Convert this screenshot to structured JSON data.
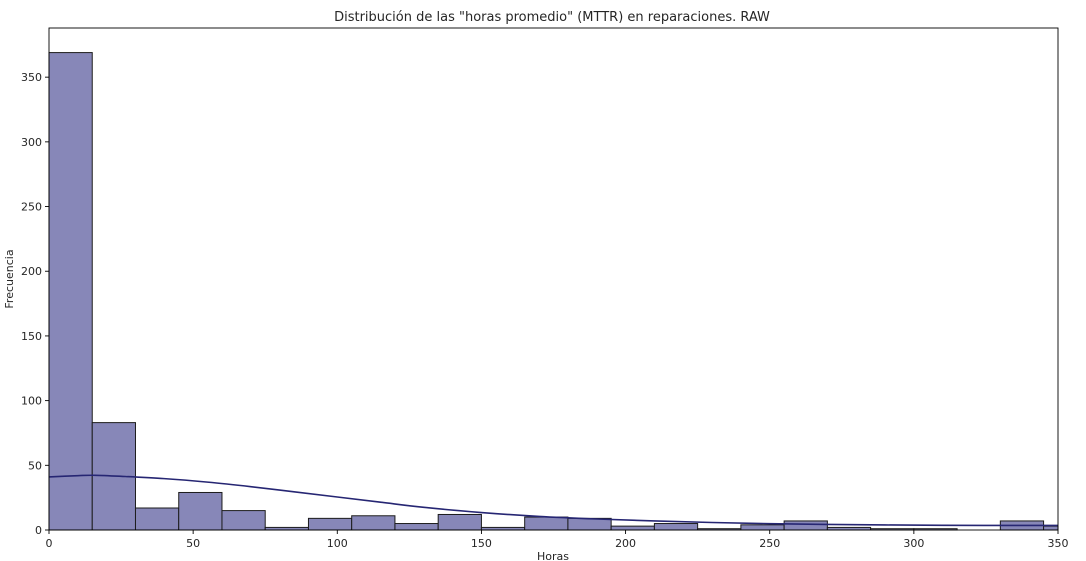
{
  "chart_data": {
    "type": "bar",
    "title": "Distribución de las \"horas promedio\" (MTTR) en reparaciones. RAW",
    "xlabel": "Horas",
    "ylabel": "Frecuencia",
    "xlim": [
      0,
      350
    ],
    "ylim": [
      0,
      388
    ],
    "xticks": [
      0,
      50,
      100,
      150,
      200,
      250,
      300,
      350
    ],
    "yticks": [
      0,
      50,
      100,
      150,
      200,
      250,
      300,
      350
    ],
    "bin_width": 15,
    "bins": [
      {
        "x0": 0,
        "x1": 15,
        "count": 369
      },
      {
        "x0": 15,
        "x1": 30,
        "count": 83
      },
      {
        "x0": 30,
        "x1": 45,
        "count": 17
      },
      {
        "x0": 45,
        "x1": 60,
        "count": 29
      },
      {
        "x0": 60,
        "x1": 75,
        "count": 15
      },
      {
        "x0": 75,
        "x1": 90,
        "count": 2
      },
      {
        "x0": 90,
        "x1": 105,
        "count": 9
      },
      {
        "x0": 105,
        "x1": 120,
        "count": 11
      },
      {
        "x0": 120,
        "x1": 135,
        "count": 5
      },
      {
        "x0": 135,
        "x1": 150,
        "count": 12
      },
      {
        "x0": 150,
        "x1": 165,
        "count": 2
      },
      {
        "x0": 165,
        "x1": 180,
        "count": 10
      },
      {
        "x0": 180,
        "x1": 195,
        "count": 9
      },
      {
        "x0": 195,
        "x1": 210,
        "count": 3
      },
      {
        "x0": 210,
        "x1": 225,
        "count": 5
      },
      {
        "x0": 225,
        "x1": 240,
        "count": 1
      },
      {
        "x0": 240,
        "x1": 255,
        "count": 4
      },
      {
        "x0": 255,
        "x1": 270,
        "count": 7
      },
      {
        "x0": 270,
        "x1": 285,
        "count": 2
      },
      {
        "x0": 285,
        "x1": 300,
        "count": 1
      },
      {
        "x0": 300,
        "x1": 315,
        "count": 1
      },
      {
        "x0": 315,
        "x1": 330,
        "count": 0
      },
      {
        "x0": 330,
        "x1": 345,
        "count": 7
      },
      {
        "x0": 345,
        "x1": 350,
        "count": 3
      }
    ],
    "kde_curve": {
      "x": [
        0,
        10,
        16,
        25,
        40,
        55,
        70,
        85,
        100,
        115,
        130,
        150,
        170,
        190,
        210,
        230,
        250,
        270,
        290,
        310,
        330,
        350
      ],
      "y": [
        41,
        42,
        42.3,
        41.5,
        39.7,
        37,
        33.5,
        29.5,
        25.5,
        21.5,
        17.5,
        13.5,
        10.5,
        8.5,
        7,
        5.8,
        4.9,
        4.3,
        3.9,
        3.6,
        3.5,
        3.5
      ]
    },
    "colors": {
      "bar_fill": "#8787b8",
      "bar_edge": "#1c1c1c",
      "kde_line": "#262673",
      "axis": "#000000"
    },
    "grid": false,
    "legend": "none"
  }
}
